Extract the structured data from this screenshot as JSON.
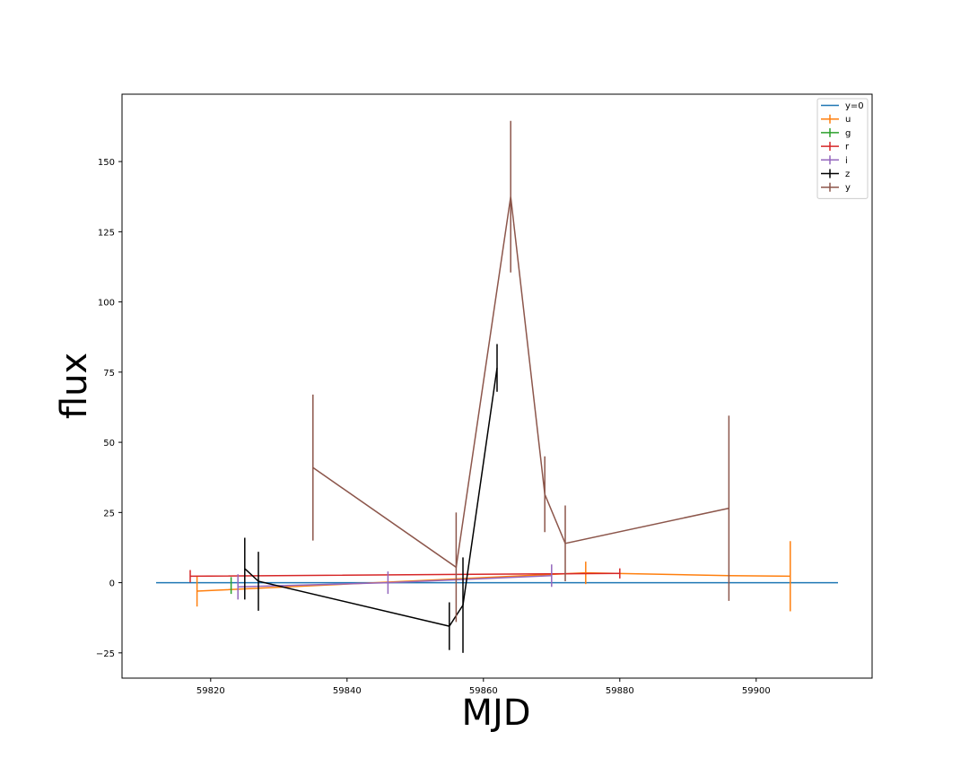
{
  "chart_data": {
    "type": "line",
    "xlabel": "MJD",
    "ylabel": "flux",
    "xlim": [
      59807,
      59917
    ],
    "ylim": [
      -34,
      174
    ],
    "xticks": [
      59820,
      59840,
      59860,
      59880,
      59900
    ],
    "yticks": [
      -25,
      0,
      25,
      50,
      75,
      100,
      125,
      150
    ],
    "grid": false,
    "legend": "top-right",
    "reference_line": {
      "name": "y=0",
      "color": "#1f77b4",
      "x": [
        59812,
        59912
      ],
      "y": [
        0,
        0
      ]
    },
    "series": [
      {
        "name": "u",
        "color": "#ff7f0e",
        "points": [
          {
            "x": 59818,
            "y": -3,
            "err": 5.5
          },
          {
            "x": 59875,
            "y": 3.5,
            "err": 4
          },
          {
            "x": 59896,
            "y": 2.5,
            "err": 0
          },
          {
            "x": 59905,
            "y": 2.3,
            "err": 12.5
          }
        ]
      },
      {
        "name": "g",
        "color": "#2ca02c",
        "points": [
          {
            "x": 59823,
            "y": -1,
            "err": 3
          }
        ]
      },
      {
        "name": "r",
        "color": "#d62728",
        "points": [
          {
            "x": 59817,
            "y": 2.3,
            "err": 2.2
          },
          {
            "x": 59872,
            "y": 3.2,
            "err": 0
          },
          {
            "x": 59880,
            "y": 3.3,
            "err": 1.8
          }
        ]
      },
      {
        "name": "i",
        "color": "#9467bd",
        "points": [
          {
            "x": 59824,
            "y": -1.5,
            "err": 4.5
          },
          {
            "x": 59846,
            "y": 0,
            "err": 4
          },
          {
            "x": 59870,
            "y": 2.5,
            "err": 4
          }
        ]
      },
      {
        "name": "z",
        "color": "#000000",
        "points": [
          {
            "x": 59825,
            "y": 5,
            "err": 11
          },
          {
            "x": 59827,
            "y": 0.5,
            "err": 10.5
          },
          {
            "x": 59855,
            "y": -15.5,
            "err": 8.5
          },
          {
            "x": 59857,
            "y": -8,
            "err": 17
          },
          {
            "x": 59862,
            "y": 76.5,
            "err": 8.5
          }
        ]
      },
      {
        "name": "y",
        "color": "#8c564b",
        "points": [
          {
            "x": 59835,
            "y": 41,
            "err": 26
          },
          {
            "x": 59856,
            "y": 5.5,
            "err": 19.5
          },
          {
            "x": 59864,
            "y": 137.5,
            "err": 27
          },
          {
            "x": 59869,
            "y": 31.5,
            "err": 13.5
          },
          {
            "x": 59872,
            "y": 14,
            "err": 13.5
          },
          {
            "x": 59896,
            "y": 26.5,
            "err": 33
          }
        ]
      }
    ]
  }
}
